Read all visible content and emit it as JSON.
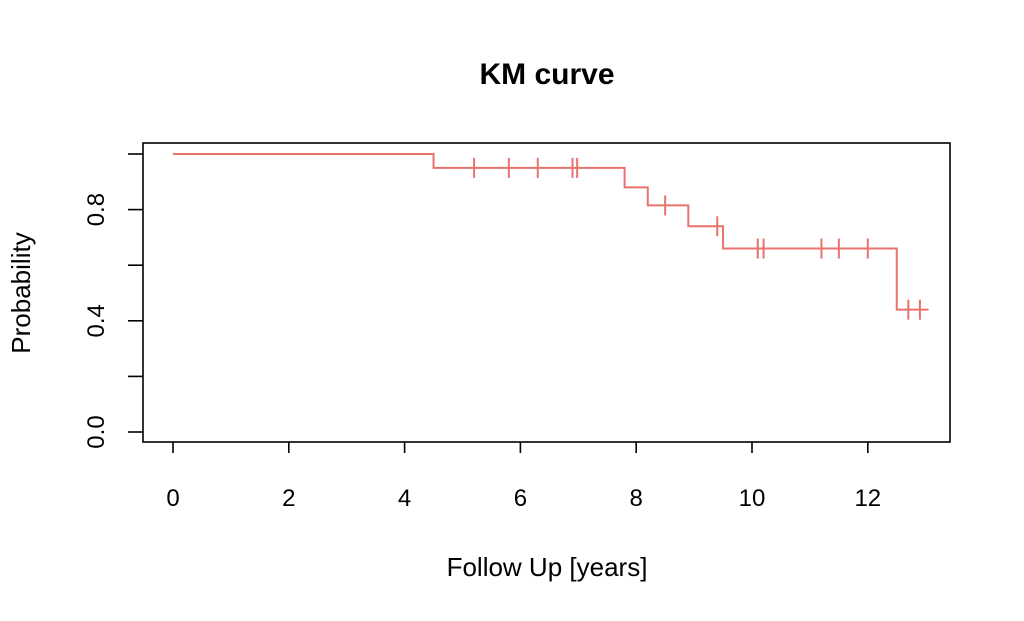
{
  "chart_data": {
    "type": "line",
    "title": "KM curve",
    "xlabel": "Follow Up [years]",
    "ylabel": "Probability",
    "xlim": [
      0,
      13
    ],
    "ylim": [
      0,
      1
    ],
    "x_ticks": [
      0,
      2,
      4,
      6,
      8,
      10,
      12
    ],
    "y_ticks": [
      0,
      0.2,
      0.4,
      0.6,
      0.8,
      1.0
    ],
    "y_tick_labels": [
      "0.0",
      "",
      "0.4",
      "",
      "0.8",
      ""
    ],
    "grid": false,
    "color": "#E8736C",
    "series": [
      {
        "steps": [
          {
            "x": 0,
            "y": 1.0
          },
          {
            "x": 4.5,
            "y": 0.95
          },
          {
            "x": 7.8,
            "y": 0.88
          },
          {
            "x": 8.2,
            "y": 0.815
          },
          {
            "x": 8.9,
            "y": 0.74
          },
          {
            "x": 9.5,
            "y": 0.66
          },
          {
            "x": 12.5,
            "y": 0.44
          }
        ],
        "end_x": 13.05,
        "censored": [
          5.2,
          5.8,
          6.3,
          6.9,
          6.98,
          8.5,
          9.4,
          10.1,
          10.2,
          11.2,
          11.5,
          12.0,
          12.7,
          12.9
        ]
      }
    ]
  }
}
